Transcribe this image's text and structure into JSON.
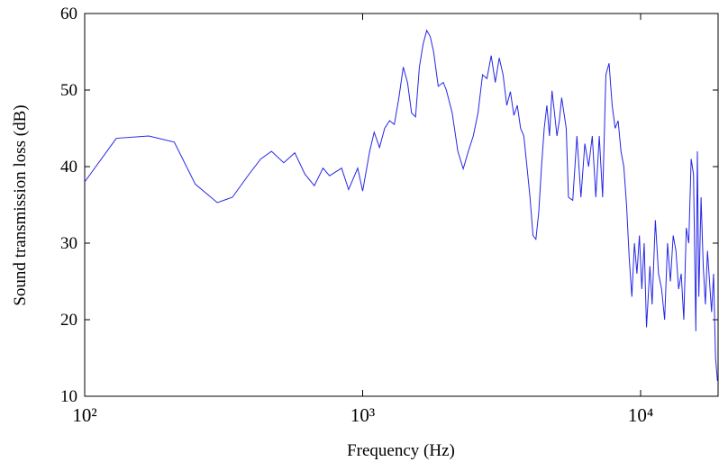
{
  "chart_data": {
    "type": "line",
    "xlabel": "Frequency (Hz)",
    "ylabel": "Sound transmission loss (dB)",
    "x_scale": "log",
    "xlim": [
      100,
      19000
    ],
    "ylim": [
      10,
      60
    ],
    "xticks": [
      {
        "value": 100,
        "label": "10²"
      },
      {
        "value": 1000,
        "label": "10³"
      },
      {
        "value": 10000,
        "label": "10⁴"
      }
    ],
    "yticks": [
      10,
      20,
      30,
      40,
      50,
      60
    ],
    "series": [
      {
        "color": "#2626e6",
        "x": [
          100,
          130,
          170,
          210,
          250,
          300,
          340,
          390,
          430,
          470,
          520,
          570,
          620,
          670,
          720,
          760,
          840,
          890,
          960,
          1000,
          1060,
          1100,
          1150,
          1200,
          1250,
          1300,
          1350,
          1400,
          1450,
          1500,
          1550,
          1600,
          1650,
          1700,
          1750,
          1800,
          1870,
          1950,
          2000,
          2100,
          2200,
          2300,
          2400,
          2500,
          2600,
          2700,
          2800,
          2900,
          3000,
          3100,
          3200,
          3300,
          3400,
          3500,
          3600,
          3700,
          3800,
          3900,
          4000,
          4100,
          4200,
          4300,
          4400,
          4500,
          4600,
          4700,
          4800,
          4900,
          5000,
          5100,
          5200,
          5400,
          5500,
          5700,
          5900,
          6100,
          6300,
          6500,
          6700,
          6900,
          7100,
          7300,
          7500,
          7700,
          7900,
          8100,
          8300,
          8500,
          8700,
          8900,
          9100,
          9300,
          9500,
          9700,
          9900,
          10100,
          10300,
          10500,
          10800,
          11000,
          11300,
          11600,
          11900,
          12200,
          12500,
          12800,
          13100,
          13400,
          13700,
          14000,
          14300,
          14600,
          14900,
          15200,
          15500,
          15800,
          16000,
          16200,
          16500,
          16800,
          17100,
          17400,
          17700,
          18000,
          18300,
          18600,
          18900
        ],
        "values": [
          38,
          43.7,
          44,
          43.2,
          37.7,
          35.3,
          36,
          39,
          41,
          42,
          40.5,
          41.8,
          39,
          37.5,
          39.8,
          38.8,
          39.8,
          37,
          39.8,
          36.8,
          42,
          44.5,
          42.5,
          45,
          46,
          45.5,
          49,
          53,
          51,
          47,
          46.5,
          53,
          56,
          57.8,
          57,
          55,
          50.5,
          51,
          50,
          47,
          42,
          39.7,
          42,
          44,
          47,
          52,
          51.5,
          54.5,
          51,
          54.2,
          52,
          48,
          49.8,
          46.7,
          48,
          45,
          44,
          40,
          36,
          31,
          30.5,
          34,
          40,
          45,
          48,
          44,
          49.9,
          47,
          44,
          46,
          49,
          45,
          36,
          35.6,
          44,
          36,
          43,
          40,
          44,
          36,
          44,
          36,
          52,
          53.5,
          48,
          45,
          46,
          42,
          40,
          35,
          28,
          23,
          30,
          26,
          31,
          24,
          30,
          19,
          27,
          22,
          33,
          26,
          24,
          20,
          30,
          25,
          31,
          29,
          24,
          26,
          20,
          32,
          30,
          41,
          39,
          18.5,
          42,
          23,
          36,
          27,
          22,
          29,
          25,
          21,
          26,
          15,
          12
        ]
      }
    ]
  }
}
